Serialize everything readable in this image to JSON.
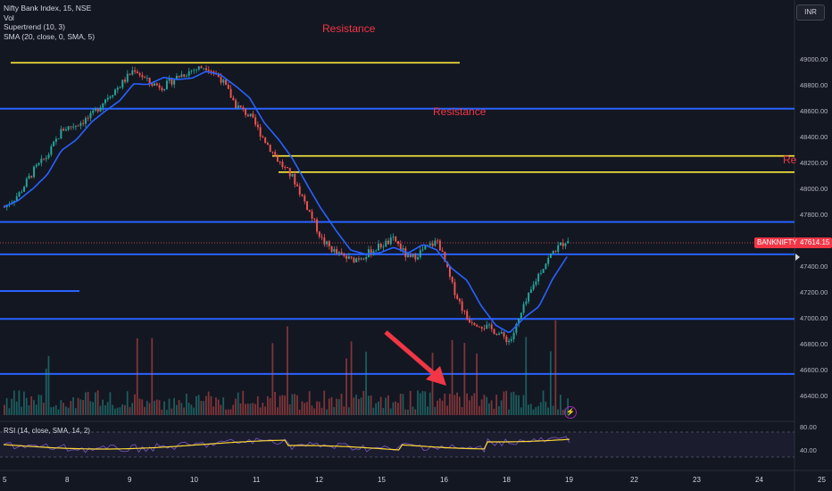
{
  "legend": {
    "symbol": "Nifty Bank Index, 15, NSE",
    "vol": "Vol",
    "supertrend": "Supertrend (10, 3)",
    "sma": "SMA (20, close, 0, SMA, 5)"
  },
  "annotations": {
    "resistance_1": "Resistance",
    "resistance_2": "Resistance",
    "resistance_3": "Re"
  },
  "currency_button": "INR",
  "price_axis": [
    "49000.00",
    "48800.00",
    "48600.00",
    "48400.00",
    "48200.00",
    "48000.00",
    "47800.00",
    "47400.00",
    "47200.00",
    "47000.00",
    "46800.00",
    "46600.00",
    "46400.00"
  ],
  "symbol_tag": "BANKNIFTY",
  "last_price": "47614.15",
  "rsi": {
    "legend": "RSI (14, close, SMA, 14, 2)",
    "levels": [
      "80.00",
      "40.00"
    ]
  },
  "x_axis": [
    "5",
    "8",
    "9",
    "10",
    "11",
    "12",
    "15",
    "16",
    "18",
    "19",
    "22",
    "23",
    "24",
    "25"
  ],
  "colors": {
    "background": "#131722",
    "up": "#26a69a",
    "down": "#ef5350",
    "sma": "#2962ff",
    "support_line": "#2962ff",
    "resistance_line": "#ffeb3b",
    "annotation": "#f23645",
    "arrow": "#f23645",
    "rsi_line": "#7e57c2",
    "rsi_ma": "#fdd835"
  },
  "icons": {
    "replay": "lightning-icon"
  },
  "chart_data": {
    "type": "candlestick",
    "series_hint": "Nifty Bank Index 15-minute bars",
    "y_range": [
      46300,
      49150
    ],
    "x_labels": [
      "5",
      "8",
      "9",
      "10",
      "11",
      "12",
      "15",
      "16",
      "18",
      "19",
      "22",
      "23",
      "24",
      "25"
    ],
    "horizontal_levels": [
      {
        "price": 48975,
        "color": "yellow"
      },
      {
        "price": 48620,
        "color": "blue"
      },
      {
        "price": 48255,
        "color": "yellow"
      },
      {
        "price": 48130,
        "color": "yellow"
      },
      {
        "price": 47745,
        "color": "blue"
      },
      {
        "price": 47495,
        "color": "blue"
      },
      {
        "price": 46995,
        "color": "blue"
      },
      {
        "price": 46570,
        "color": "blue"
      }
    ],
    "close_path": [
      47860,
      47960,
      48140,
      48260,
      48460,
      48500,
      48560,
      48700,
      48800,
      48930,
      48820,
      48790,
      48870,
      48920,
      48950,
      48850,
      48650,
      48560,
      48380,
      48210,
      48080,
      47850,
      47600,
      47500,
      47450,
      47490,
      47560,
      47610,
      47450,
      47530,
      47600,
      47250,
      47000,
      46950,
      46900,
      46820,
      47100,
      47350,
      47520,
      47614
    ]
  }
}
